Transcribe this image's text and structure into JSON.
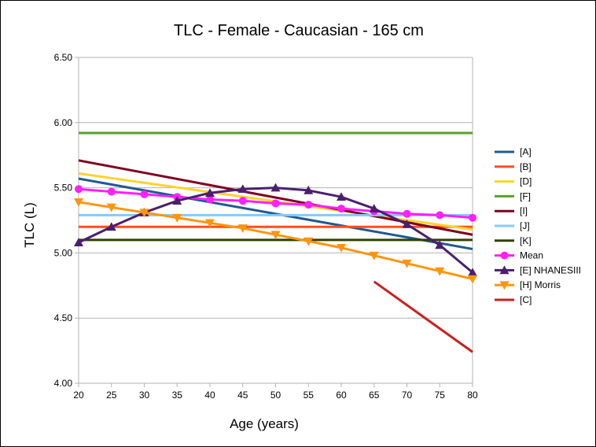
{
  "chart_data": {
    "type": "line",
    "title": "TLC - Female - Caucasian - 165 cm",
    "xlabel": "Age (years)",
    "ylabel": "TLC (L)",
    "xlim": [
      20,
      80
    ],
    "ylim": [
      4.0,
      6.5
    ],
    "x_ticks": [
      "20",
      "25",
      "30",
      "35",
      "40",
      "45",
      "50",
      "55",
      "60",
      "65",
      "70",
      "75",
      "80"
    ],
    "y_ticks": [
      "4.00",
      "4.50",
      "5.00",
      "5.50",
      "6.00",
      "6.50"
    ],
    "legend_position": "right",
    "series": [
      {
        "name": "[A]",
        "color": "#1f5a8f",
        "marker": "none",
        "x": [
          20,
          80
        ],
        "y": [
          5.57,
          5.03
        ]
      },
      {
        "name": "[B]",
        "color": "#ff4f1f",
        "marker": "none",
        "x": [
          20,
          80
        ],
        "y": [
          5.2,
          5.2
        ]
      },
      {
        "name": "[D]",
        "color": "#ffd22e",
        "marker": "none",
        "x": [
          20,
          80
        ],
        "y": [
          5.61,
          5.18
        ]
      },
      {
        "name": "[F]",
        "color": "#5aa02c",
        "marker": "none",
        "x": [
          20,
          80
        ],
        "y": [
          5.92,
          5.92
        ]
      },
      {
        "name": "[I]",
        "color": "#7e0020",
        "marker": "none",
        "x": [
          20,
          80
        ],
        "y": [
          5.71,
          5.14
        ]
      },
      {
        "name": "[J]",
        "color": "#83caff",
        "marker": "none",
        "x": [
          20,
          80
        ],
        "y": [
          5.29,
          5.29
        ]
      },
      {
        "name": "[K]",
        "color": "#314004",
        "marker": "none",
        "x": [
          20,
          80
        ],
        "y": [
          5.1,
          5.1
        ]
      },
      {
        "name": "Mean",
        "color": "#ff1fff",
        "marker": "circle",
        "x": [
          20,
          25,
          30,
          35,
          40,
          45,
          50,
          55,
          60,
          65,
          70,
          75,
          80
        ],
        "y": [
          5.49,
          5.47,
          5.45,
          5.43,
          5.41,
          5.4,
          5.38,
          5.37,
          5.34,
          5.32,
          5.3,
          5.29,
          5.27
        ]
      },
      {
        "name": "[E] NHANESIII",
        "color": "#4b1f6f",
        "marker": "triangle-up",
        "x": [
          20,
          25,
          30,
          35,
          40,
          45,
          50,
          55,
          60,
          65,
          70,
          75,
          80
        ],
        "y": [
          5.08,
          5.2,
          5.31,
          5.4,
          5.46,
          5.49,
          5.5,
          5.48,
          5.43,
          5.34,
          5.22,
          5.06,
          4.85
        ]
      },
      {
        "name": "[H] Morris",
        "color": "#ff950e",
        "marker": "triangle-down",
        "x": [
          20,
          25,
          30,
          35,
          40,
          45,
          50,
          55,
          60,
          65,
          70,
          75,
          80
        ],
        "y": [
          5.39,
          5.35,
          5.31,
          5.27,
          5.23,
          5.19,
          5.14,
          5.09,
          5.04,
          4.98,
          4.92,
          4.86,
          4.8
        ]
      },
      {
        "name": "[C]",
        "color": "#c9211e",
        "marker": "none",
        "x": [
          65,
          80
        ],
        "y": [
          4.78,
          4.24
        ]
      }
    ]
  }
}
